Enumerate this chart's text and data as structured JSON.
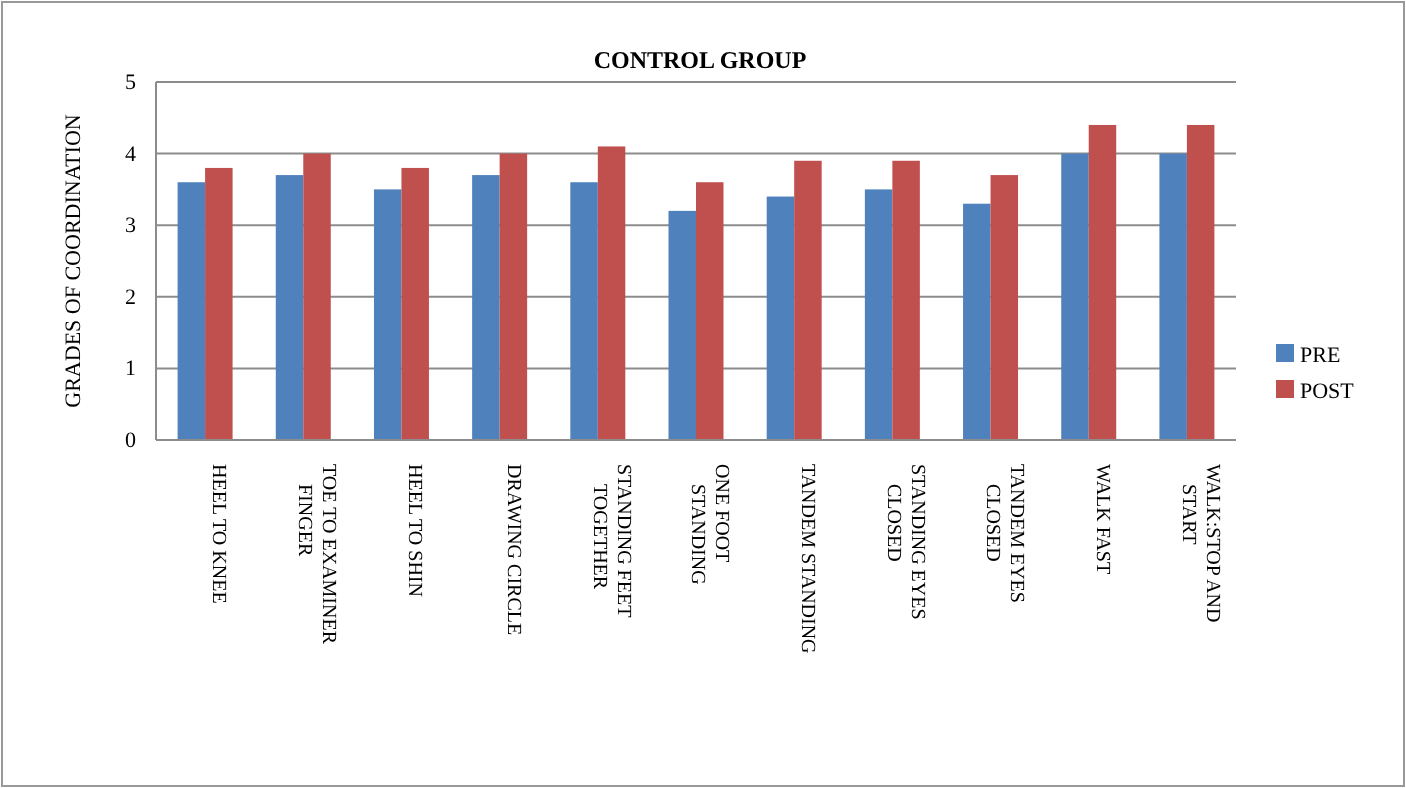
{
  "chart_data": {
    "type": "bar",
    "title": "CONTROL  GROUP",
    "ylabel": "GRADES OF COORDINATION",
    "categories": [
      "HEEL  TO KNEE",
      "TOE TO EXAMINER FINGER",
      "HEEL  TO SHIN",
      "DRAWING  CIRCLE",
      "STANDING FEET TOGETHER",
      "ONE FOOT STANDING",
      "TANDEM STANDING",
      "STANDING EYES CLOSED",
      "TANDEM EYES CLOSED",
      "WALK FAST",
      "WALK:STOP  AND START"
    ],
    "series": [
      {
        "name": "PRE",
        "color": "#4f81bd",
        "values": [
          3.6,
          3.7,
          3.5,
          3.7,
          3.6,
          3.2,
          3.4,
          3.5,
          3.3,
          4.0,
          4.0
        ]
      },
      {
        "name": "POST",
        "color": "#c0504d",
        "values": [
          3.8,
          4.0,
          3.8,
          4.0,
          4.1,
          3.6,
          3.9,
          3.9,
          3.7,
          4.4,
          4.4
        ]
      }
    ],
    "ylim": [
      0,
      5
    ],
    "yticks": [
      0,
      1,
      2,
      3,
      4,
      5
    ],
    "grid": "y",
    "legend": "right"
  }
}
